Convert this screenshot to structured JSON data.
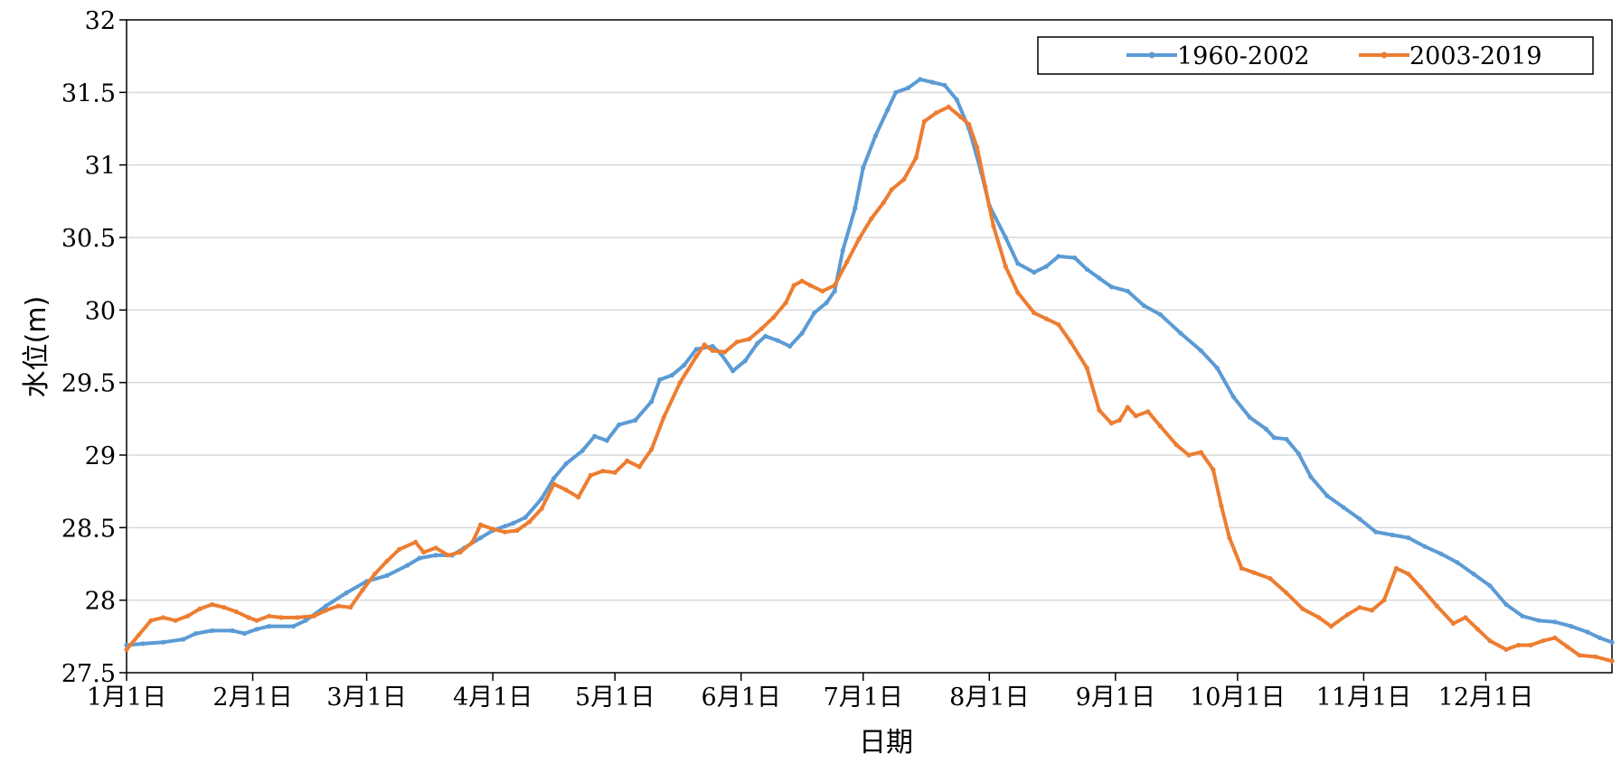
{
  "chart_data": {
    "type": "line",
    "xlabel": "日期",
    "ylabel": "水位(m)",
    "ylim": [
      27.5,
      32
    ],
    "yticks": [
      "27.5",
      "28",
      "28.5",
      "29",
      "29.5",
      "30",
      "30.5",
      "31",
      "31.5",
      "32"
    ],
    "xlim": [
      1,
      366
    ],
    "xticks": [
      {
        "label": "1月1日",
        "day": 1
      },
      {
        "label": "2月1日",
        "day": 32
      },
      {
        "label": "3月1日",
        "day": 60
      },
      {
        "label": "4月1日",
        "day": 91
      },
      {
        "label": "5月1日",
        "day": 121
      },
      {
        "label": "6月1日",
        "day": 152
      },
      {
        "label": "7月1日",
        "day": 182
      },
      {
        "label": "8月1日",
        "day": 213
      },
      {
        "label": "9月1日",
        "day": 244
      },
      {
        "label": "10月1日",
        "day": 274
      },
      {
        "label": "11月1日",
        "day": 305
      },
      {
        "label": "12月1日",
        "day": 335
      }
    ],
    "grid": true,
    "legend_position": "top-right",
    "series": [
      {
        "name": "1960-2002",
        "color": "#5B9BD5",
        "points": [
          [
            1,
            27.69
          ],
          [
            5,
            27.7
          ],
          [
            10,
            27.71
          ],
          [
            15,
            27.73
          ],
          [
            18,
            27.77
          ],
          [
            22,
            27.79
          ],
          [
            27,
            27.79
          ],
          [
            30,
            27.77
          ],
          [
            33,
            27.8
          ],
          [
            36,
            27.82
          ],
          [
            42,
            27.82
          ],
          [
            45,
            27.86
          ],
          [
            50,
            27.96
          ],
          [
            55,
            28.05
          ],
          [
            60,
            28.13
          ],
          [
            65,
            28.17
          ],
          [
            70,
            28.24
          ],
          [
            73,
            28.29
          ],
          [
            77,
            28.31
          ],
          [
            81,
            28.31
          ],
          [
            84,
            28.36
          ],
          [
            88,
            28.43
          ],
          [
            91,
            28.48
          ],
          [
            94,
            28.51
          ],
          [
            96,
            28.53
          ],
          [
            99,
            28.57
          ],
          [
            103,
            28.7
          ],
          [
            106,
            28.84
          ],
          [
            109,
            28.94
          ],
          [
            113,
            29.03
          ],
          [
            116,
            29.13
          ],
          [
            119,
            29.1
          ],
          [
            122,
            29.21
          ],
          [
            126,
            29.24
          ],
          [
            130,
            29.37
          ],
          [
            132,
            29.52
          ],
          [
            135,
            29.55
          ],
          [
            138,
            29.62
          ],
          [
            141,
            29.73
          ],
          [
            145,
            29.75
          ],
          [
            147,
            29.7
          ],
          [
            150,
            29.58
          ],
          [
            153,
            29.65
          ],
          [
            156,
            29.77
          ],
          [
            158,
            29.82
          ],
          [
            161,
            29.79
          ],
          [
            164,
            29.75
          ],
          [
            167,
            29.84
          ],
          [
            170,
            29.98
          ],
          [
            173,
            30.05
          ],
          [
            175,
            30.13
          ],
          [
            177,
            30.41
          ],
          [
            180,
            30.7
          ],
          [
            182,
            30.98
          ],
          [
            185,
            31.2
          ],
          [
            188,
            31.38
          ],
          [
            190,
            31.5
          ],
          [
            193,
            31.53
          ],
          [
            196,
            31.59
          ],
          [
            199,
            31.57
          ],
          [
            202,
            31.55
          ],
          [
            205,
            31.45
          ],
          [
            208,
            31.25
          ],
          [
            211,
            30.95
          ],
          [
            213,
            30.72
          ],
          [
            217,
            30.5
          ],
          [
            220,
            30.32
          ],
          [
            224,
            30.26
          ],
          [
            227,
            30.3
          ],
          [
            230,
            30.37
          ],
          [
            234,
            30.36
          ],
          [
            237,
            30.28
          ],
          [
            240,
            30.22
          ],
          [
            243,
            30.16
          ],
          [
            247,
            30.13
          ],
          [
            251,
            30.03
          ],
          [
            255,
            29.97
          ],
          [
            260,
            29.84
          ],
          [
            265,
            29.72
          ],
          [
            269,
            29.6
          ],
          [
            273,
            29.4
          ],
          [
            277,
            29.26
          ],
          [
            281,
            29.18
          ],
          [
            283,
            29.12
          ],
          [
            286,
            29.11
          ],
          [
            289,
            29.01
          ],
          [
            292,
            28.85
          ],
          [
            296,
            28.72
          ],
          [
            300,
            28.64
          ],
          [
            304,
            28.56
          ],
          [
            308,
            28.47
          ],
          [
            312,
            28.45
          ],
          [
            316,
            28.43
          ],
          [
            320,
            28.37
          ],
          [
            324,
            28.32
          ],
          [
            328,
            28.26
          ],
          [
            332,
            28.18
          ],
          [
            336,
            28.1
          ],
          [
            340,
            27.97
          ],
          [
            344,
            27.89
          ],
          [
            348,
            27.86
          ],
          [
            352,
            27.85
          ],
          [
            356,
            27.82
          ],
          [
            360,
            27.78
          ],
          [
            363,
            27.74
          ],
          [
            366,
            27.71
          ]
        ]
      },
      {
        "name": "2003-2019",
        "color": "#ED7D31",
        "points": [
          [
            1,
            27.66
          ],
          [
            4,
            27.76
          ],
          [
            7,
            27.86
          ],
          [
            10,
            27.88
          ],
          [
            13,
            27.86
          ],
          [
            16,
            27.89
          ],
          [
            19,
            27.94
          ],
          [
            22,
            27.97
          ],
          [
            25,
            27.95
          ],
          [
            28,
            27.92
          ],
          [
            31,
            27.88
          ],
          [
            33,
            27.86
          ],
          [
            36,
            27.89
          ],
          [
            39,
            27.88
          ],
          [
            43,
            27.88
          ],
          [
            47,
            27.89
          ],
          [
            50,
            27.93
          ],
          [
            53,
            27.96
          ],
          [
            56,
            27.95
          ],
          [
            59,
            28.07
          ],
          [
            62,
            28.18
          ],
          [
            65,
            28.27
          ],
          [
            68,
            28.35
          ],
          [
            72,
            28.4
          ],
          [
            74,
            28.33
          ],
          [
            77,
            28.36
          ],
          [
            80,
            28.31
          ],
          [
            83,
            28.33
          ],
          [
            86,
            28.4
          ],
          [
            88,
            28.52
          ],
          [
            91,
            28.49
          ],
          [
            94,
            28.47
          ],
          [
            97,
            28.48
          ],
          [
            100,
            28.54
          ],
          [
            103,
            28.63
          ],
          [
            106,
            28.8
          ],
          [
            109,
            28.76
          ],
          [
            112,
            28.71
          ],
          [
            115,
            28.86
          ],
          [
            118,
            28.89
          ],
          [
            121,
            28.88
          ],
          [
            124,
            28.96
          ],
          [
            127,
            28.92
          ],
          [
            130,
            29.04
          ],
          [
            133,
            29.26
          ],
          [
            137,
            29.5
          ],
          [
            141,
            29.68
          ],
          [
            143,
            29.76
          ],
          [
            145,
            29.72
          ],
          [
            148,
            29.71
          ],
          [
            151,
            29.78
          ],
          [
            154,
            29.8
          ],
          [
            157,
            29.87
          ],
          [
            160,
            29.95
          ],
          [
            163,
            30.05
          ],
          [
            165,
            30.17
          ],
          [
            167,
            30.2
          ],
          [
            169,
            30.17
          ],
          [
            172,
            30.13
          ],
          [
            175,
            30.17
          ],
          [
            178,
            30.33
          ],
          [
            181,
            30.49
          ],
          [
            184,
            30.63
          ],
          [
            187,
            30.74
          ],
          [
            189,
            30.83
          ],
          [
            192,
            30.9
          ],
          [
            195,
            31.05
          ],
          [
            197,
            31.3
          ],
          [
            200,
            31.36
          ],
          [
            203,
            31.4
          ],
          [
            206,
            31.33
          ],
          [
            208,
            31.28
          ],
          [
            210,
            31.12
          ],
          [
            212,
            30.85
          ],
          [
            214,
            30.58
          ],
          [
            217,
            30.3
          ],
          [
            220,
            30.12
          ],
          [
            224,
            29.98
          ],
          [
            227,
            29.94
          ],
          [
            230,
            29.9
          ],
          [
            233,
            29.78
          ],
          [
            237,
            29.6
          ],
          [
            240,
            29.31
          ],
          [
            243,
            29.22
          ],
          [
            245,
            29.24
          ],
          [
            247,
            29.33
          ],
          [
            249,
            29.27
          ],
          [
            252,
            29.3
          ],
          [
            255,
            29.2
          ],
          [
            259,
            29.07
          ],
          [
            262,
            29.0
          ],
          [
            265,
            29.02
          ],
          [
            268,
            28.9
          ],
          [
            270,
            28.65
          ],
          [
            272,
            28.43
          ],
          [
            275,
            28.22
          ],
          [
            278,
            28.19
          ],
          [
            282,
            28.15
          ],
          [
            286,
            28.05
          ],
          [
            290,
            27.94
          ],
          [
            294,
            27.88
          ],
          [
            297,
            27.82
          ],
          [
            301,
            27.9
          ],
          [
            304,
            27.95
          ],
          [
            307,
            27.93
          ],
          [
            310,
            28.0
          ],
          [
            313,
            28.22
          ],
          [
            316,
            28.18
          ],
          [
            319,
            28.09
          ],
          [
            323,
            27.96
          ],
          [
            327,
            27.84
          ],
          [
            330,
            27.88
          ],
          [
            333,
            27.8
          ],
          [
            336,
            27.72
          ],
          [
            340,
            27.66
          ],
          [
            343,
            27.69
          ],
          [
            346,
            27.69
          ],
          [
            349,
            27.72
          ],
          [
            352,
            27.74
          ],
          [
            355,
            27.68
          ],
          [
            358,
            27.62
          ],
          [
            362,
            27.61
          ],
          [
            366,
            27.58
          ]
        ]
      }
    ]
  }
}
